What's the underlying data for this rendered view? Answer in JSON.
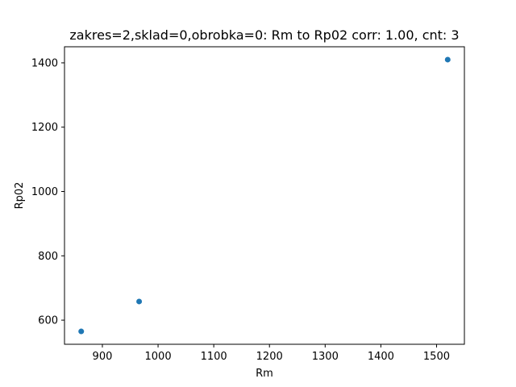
{
  "chart_data": {
    "type": "scatter",
    "title": "zakres=2,sklad=0,obrobka=0: Rm to Rp02 corr: 1.00, cnt: 3",
    "xlabel": "Rm",
    "ylabel": "Rp02",
    "xlim": [
      832,
      1550
    ],
    "ylim": [
      525,
      1450
    ],
    "xticks": [
      900,
      1000,
      1100,
      1200,
      1300,
      1400,
      1500
    ],
    "yticks": [
      600,
      800,
      1000,
      1200,
      1400
    ],
    "grid": false,
    "point_color": "#1f77b4",
    "points": [
      {
        "x": 862,
        "y": 565
      },
      {
        "x": 966,
        "y": 658
      },
      {
        "x": 1520,
        "y": 1410
      }
    ]
  }
}
